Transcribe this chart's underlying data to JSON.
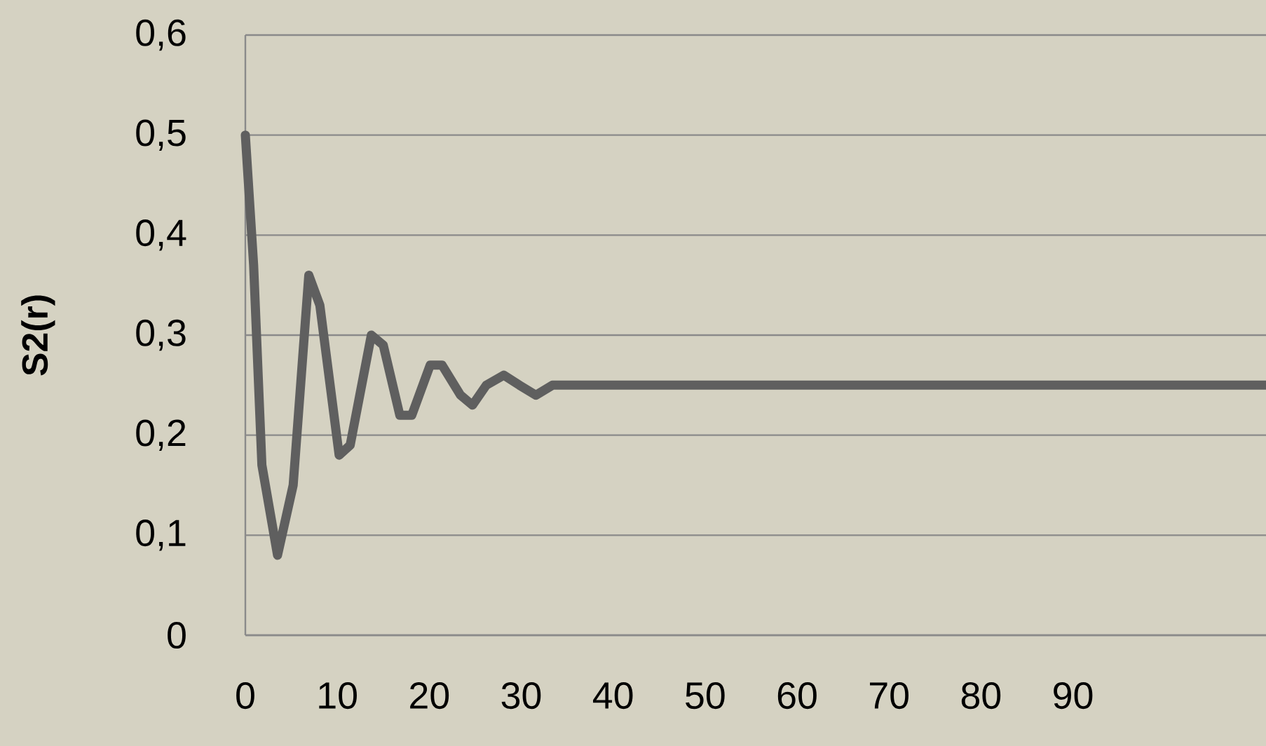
{
  "chart_data": {
    "type": "line",
    "ylabel": "S2(r)",
    "x": [
      0,
      0.9,
      1.8,
      3.5,
      5.2,
      6.9,
      8.1,
      10.2,
      11.4,
      13.7,
      15.0,
      16.8,
      18.1,
      20.1,
      21.4,
      23.4,
      24.7,
      26.2,
      28.1,
      29.8,
      31.6,
      33.4,
      35.1,
      36.9,
      40,
      45,
      50,
      60,
      70,
      80,
      90,
      100,
      111
    ],
    "series": [
      {
        "color": "#5f5f5f",
        "values": [
          0.5,
          0.37,
          0.17,
          0.08,
          0.15,
          0.36,
          0.33,
          0.18,
          0.19,
          0.3,
          0.29,
          0.22,
          0.22,
          0.27,
          0.27,
          0.24,
          0.23,
          0.25,
          0.26,
          0.25,
          0.24,
          0.25,
          0.25,
          0.25,
          0.25,
          0.25,
          0.25,
          0.25,
          0.25,
          0.25,
          0.25,
          0.25,
          0.25
        ]
      }
    ],
    "xlim": [
      0,
      111
    ],
    "ylim": [
      0,
      0.6
    ],
    "xticks": [
      0,
      10,
      20,
      30,
      40,
      50,
      60,
      70,
      80,
      90
    ],
    "yticks": [
      0,
      {
        "value": 0.1,
        "label": "0,1"
      },
      {
        "value": 0.2,
        "label": "0,2"
      },
      {
        "value": 0.3,
        "label": "0,3"
      },
      {
        "value": 0.4,
        "label": "0,4"
      },
      {
        "value": 0.5,
        "label": "0,5"
      },
      {
        "value": 0.6,
        "label": "0,6"
      }
    ],
    "grid": "y",
    "marker": "none",
    "line_style": "solid"
  }
}
